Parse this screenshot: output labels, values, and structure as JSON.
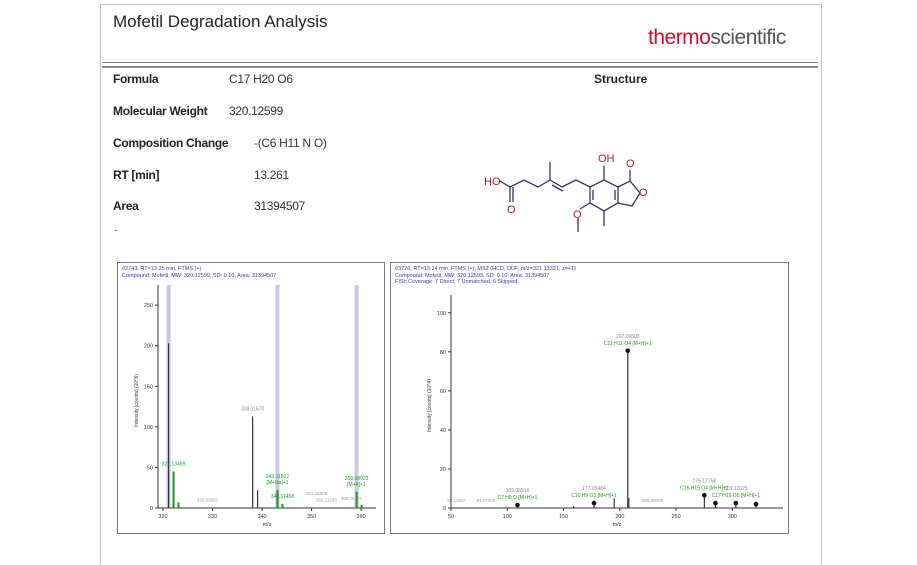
{
  "header": {
    "title": "Mofetil Degradation Analysis",
    "logo_part1": "thermo",
    "logo_part2": "scientific"
  },
  "properties": [
    {
      "label": "Formula",
      "value": "C17 H20 O6"
    },
    {
      "label": "Molecular Weight",
      "value": "320.12599"
    },
    {
      "label": "Composition Change",
      "value": "-(C6 H11 N O)"
    },
    {
      "label": "RT [min]",
      "value": "13.261"
    },
    {
      "label": "Area",
      "value": "31394507"
    }
  ],
  "dot": ".",
  "structure": {
    "heading": "Structure",
    "labels": {
      "acid_oh": "HO",
      "acid_o": "O",
      "phenol": "OH",
      "lactone_co": "O",
      "ring_o": "O",
      "methoxy_o": "O"
    }
  },
  "colors": {
    "logo_red": "#c8102e",
    "structure_red": "#a02020",
    "bond": "#333366",
    "header_blue": "#3a3ab0",
    "match_green": "#1a9a1a",
    "highlight": "#c8c8e8"
  },
  "chart_data": [
    {
      "type": "bar",
      "header": [
        "#2743, RT=13.25 min, FTMS (+)",
        "Compound: Mofetil, MW: 320.12599, SD: 0.10, Area: 31394507"
      ],
      "xlabel": "m/z",
      "ylabel": "Intensity [counts] (10^6)",
      "xlim": [
        319,
        363
      ],
      "ylim": [
        0,
        265
      ],
      "xticks": [
        320,
        330,
        340,
        350,
        360
      ],
      "yticks": [
        0,
        50,
        100,
        150,
        200,
        250
      ],
      "highlight_x": [
        321.13,
        343.115,
        359.089
      ],
      "peaks": [
        {
          "x": 321.133,
          "y": 203,
          "label": ""
        },
        {
          "x": 322.136,
          "y": 45,
          "label": "322.13469",
          "green": true
        },
        {
          "x": 323.14,
          "y": 7,
          "label": "",
          "green": true
        },
        {
          "x": 338.1,
          "y": 113,
          "label": "338.11670"
        },
        {
          "x": 339.1,
          "y": 22,
          "label": ""
        },
        {
          "x": 343.115,
          "y": 22,
          "label": "343.11502 [M+Na]+1",
          "green": true
        },
        {
          "x": 344.118,
          "y": 5,
          "label": "344.11458",
          "green": true
        },
        {
          "x": 359.089,
          "y": 20,
          "label": "359.08923 [M+K]+1",
          "green": true
        },
        {
          "x": 360.09,
          "y": 4,
          "label": "",
          "green": true
        }
      ],
      "minor_labels": [
        "329.05583",
        "351.16608",
        "353.11325",
        "358.08127"
      ]
    },
    {
      "type": "bar",
      "header": [
        "#3726, RT=13.24 min, FTMS (+), MS2 (HCD, DDF, m/z=321.13321, z=+1)",
        "Compound: Mofetil, MW: 320.12599, SD: 0.10, Area: 31394507",
        "FISh Coverage: 7 Direct, 7 Unmatched, 6 Skipped"
      ],
      "xlabel": "m/z",
      "ylabel": "Intensity [counts] (10^4)",
      "xlim": [
        50,
        345
      ],
      "ylim": [
        0,
        105
      ],
      "xticks": [
        50,
        100,
        150,
        200,
        250,
        300
      ],
      "yticks": [
        0,
        20,
        40,
        60,
        80,
        100
      ],
      "peaks": [
        {
          "x": 109.065,
          "y": 1,
          "label": "109.06516",
          "formula": "C7 H9 O [M+H]+1",
          "dot": true
        },
        {
          "x": 159,
          "y": 1,
          "label": ""
        },
        {
          "x": 177.055,
          "y": 2,
          "label": "177.05484",
          "formula": "C10 H9 O3 [M+H]+1",
          "dot": true
        },
        {
          "x": 195,
          "y": 5,
          "label": ""
        },
        {
          "x": 207.065,
          "y": 80,
          "label": "207.06503",
          "formula": "C11 H11 O4 [M+H]+1",
          "dot": true
        },
        {
          "x": 208,
          "y": 5,
          "label": ""
        },
        {
          "x": 275.128,
          "y": 6,
          "label": "275.12758",
          "formula": "C16 H19 O4 [M+H]+1",
          "dot": true
        },
        {
          "x": 285,
          "y": 2,
          "label": "",
          "dot": true
        },
        {
          "x": 303.122,
          "y": 2,
          "label": "303.12025",
          "formula": "C17 H19 O5 [M+H]+1",
          "dot": true
        },
        {
          "x": 321,
          "y": 1.5,
          "label": "",
          "dot": true
        }
      ],
      "minor_labels": [
        "55.12697",
        "81.07003",
        "229.09099"
      ]
    }
  ]
}
